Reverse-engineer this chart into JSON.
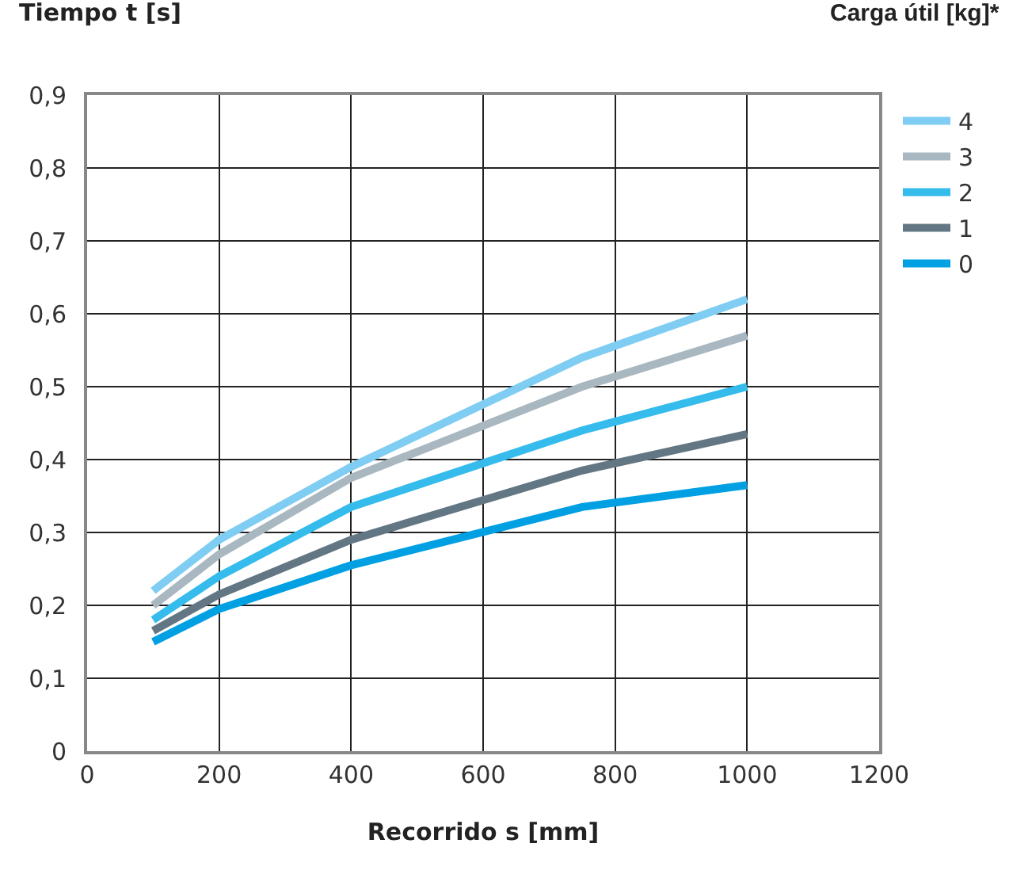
{
  "chart_data": {
    "type": "line",
    "xlabel": "Recorrido s [mm]",
    "ylabel": "Tiempo t [s]",
    "legend_title": "Carga útil [kg]*",
    "x": [
      100,
      200,
      400,
      750,
      1000
    ],
    "series": [
      {
        "name": "4",
        "color": "#7fcdf2",
        "values": [
          0.22,
          0.29,
          0.39,
          0.54,
          0.62
        ]
      },
      {
        "name": "3",
        "color": "#a9b7c0",
        "values": [
          0.2,
          0.27,
          0.375,
          0.5,
          0.57
        ]
      },
      {
        "name": "2",
        "color": "#35bbec",
        "values": [
          0.18,
          0.24,
          0.335,
          0.44,
          0.5
        ]
      },
      {
        "name": "1",
        "color": "#627783",
        "values": [
          0.165,
          0.215,
          0.29,
          0.385,
          0.435
        ]
      },
      {
        "name": "0",
        "color": "#00a0e3",
        "values": [
          0.15,
          0.195,
          0.255,
          0.335,
          0.365
        ]
      }
    ],
    "xlim": [
      0,
      1200
    ],
    "xticks": [
      0,
      200,
      400,
      600,
      800,
      1000,
      1200
    ],
    "ylim": [
      0,
      0.9
    ],
    "yticks": [
      0,
      {
        "value": 0.1,
        "label": "0,1"
      },
      {
        "value": 0.2,
        "label": "0,2"
      },
      {
        "value": 0.3,
        "label": "0,3"
      },
      {
        "value": 0.4,
        "label": "0,4"
      },
      {
        "value": 0.5,
        "label": "0,5"
      },
      {
        "value": 0.6,
        "label": "0,6"
      },
      {
        "value": 0.7,
        "label": "0,7"
      },
      {
        "value": 0.8,
        "label": "0,8"
      },
      {
        "value": 0.9,
        "label": "0,9"
      }
    ],
    "grid": true,
    "legend": "right",
    "marker": "none",
    "line_style": "solid"
  }
}
